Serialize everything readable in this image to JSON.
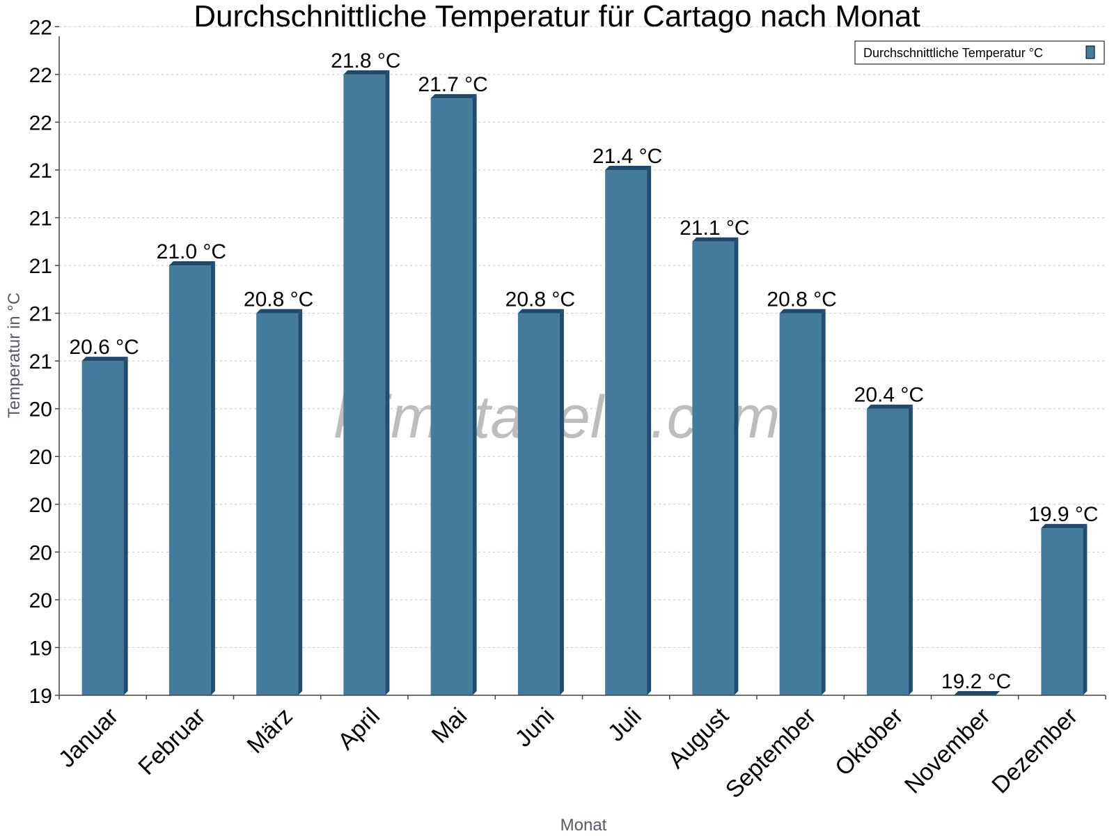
{
  "chart_data": {
    "type": "bar",
    "title": "Durchschnittliche Temperatur für Cartago nach Monat",
    "xlabel": "Monat",
    "ylabel": "Temperatur in °C",
    "categories": [
      "Januar",
      "Februar",
      "März",
      "April",
      "Mai",
      "Juni",
      "Juli",
      "August",
      "September",
      "Oktober",
      "November",
      "Dezember"
    ],
    "series": [
      {
        "name": "Durchschnittliche Temperatur °C",
        "values": [
          20.6,
          21.0,
          20.8,
          21.8,
          21.7,
          20.8,
          21.4,
          21.1,
          20.8,
          20.4,
          19.2,
          19.9
        ]
      }
    ],
    "data_labels": [
      "20.6 °C",
      "21.0 °C",
      "20.8 °C",
      "21.8 °C",
      "21.7 °C",
      "20.8 °C",
      "21.4 °C",
      "21.1 °C",
      "20.8 °C",
      "20.4 °C",
      "19.2 °C",
      "19.9 °C"
    ],
    "ylim": [
      19.2,
      21.96
    ],
    "yticks": [
      19.2,
      19.4,
      19.6,
      19.8,
      20.0,
      20.2,
      20.4,
      20.6,
      20.8,
      21.0,
      21.2,
      21.4,
      21.6,
      21.8,
      22.0
    ],
    "ytick_labels": [
      "19",
      "19",
      "20",
      "20",
      "20",
      "20",
      "20",
      "21",
      "21",
      "21",
      "21",
      "21",
      "22",
      "22",
      "22"
    ],
    "grid": true,
    "legend_position": "top-right",
    "watermark": "klimatabelle.com",
    "colors": {
      "bar": "#457b9d",
      "bar_side": "#1f4e70",
      "bar_top": "#1d4a6b"
    }
  }
}
